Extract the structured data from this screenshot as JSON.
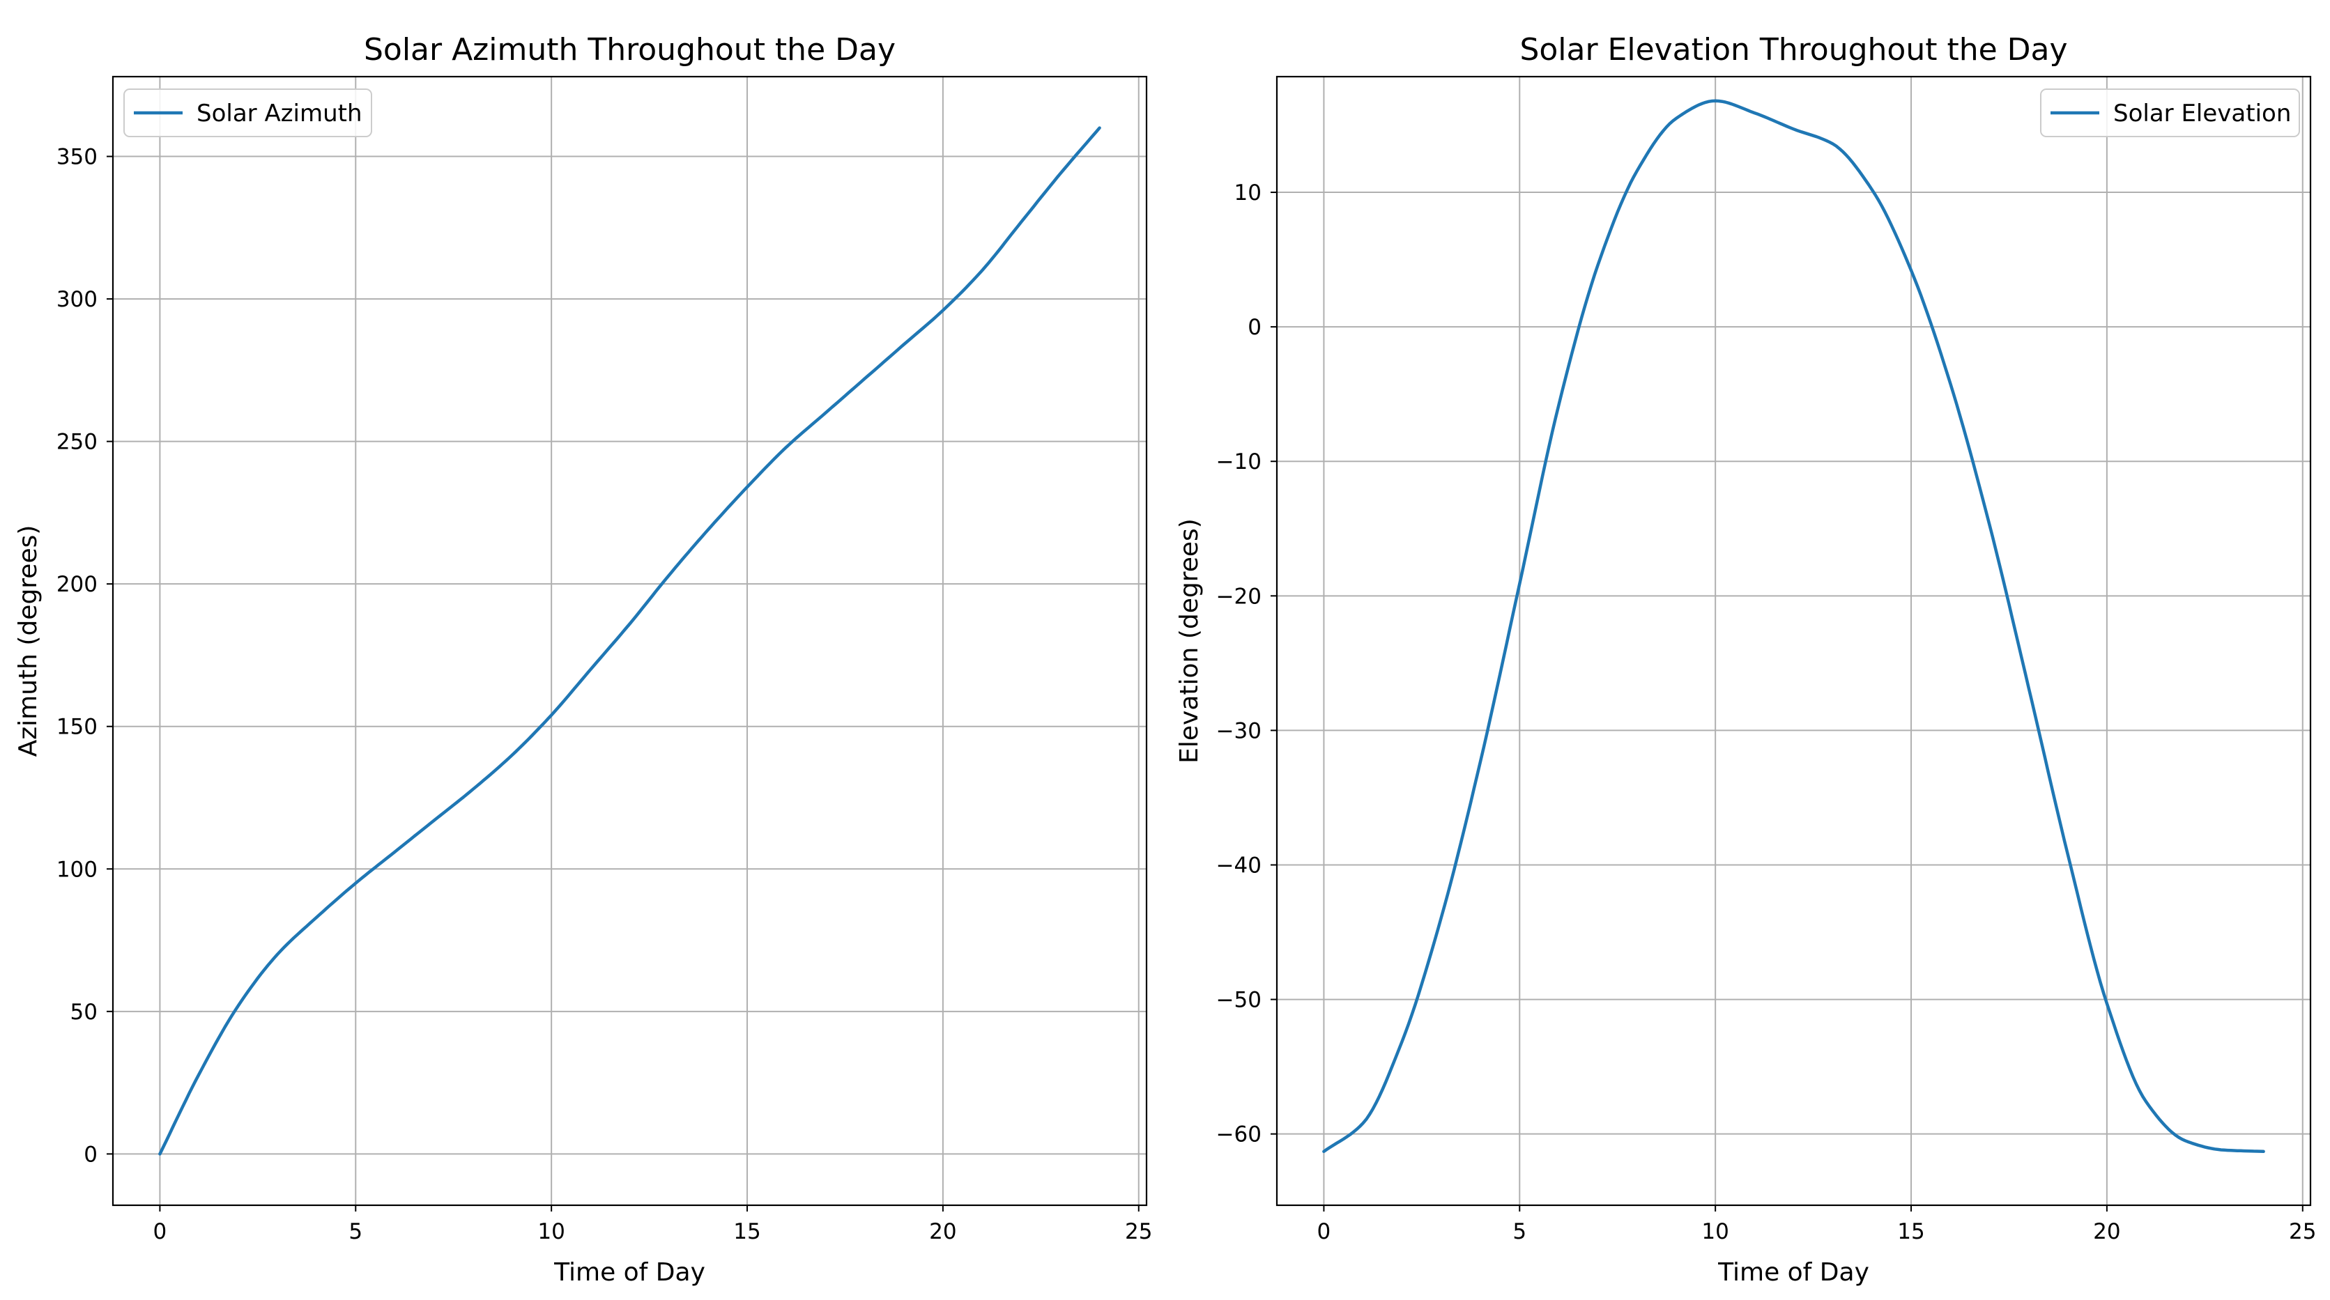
{
  "chart_data": [
    {
      "type": "line",
      "title": "Solar Azimuth Throughout the Day",
      "xlabel": "Time of Day",
      "ylabel": "Azimuth (degrees)",
      "xlim": [
        -1.2,
        25.2
      ],
      "ylim": [
        -18,
        378
      ],
      "xticks": [
        0,
        5,
        10,
        15,
        20,
        25
      ],
      "yticks": [
        0,
        50,
        100,
        150,
        200,
        250,
        300,
        350
      ],
      "xtick_labels": [
        "0",
        "5",
        "10",
        "15",
        "20",
        "25"
      ],
      "ytick_labels": [
        "0",
        "50",
        "100",
        "150",
        "200",
        "250",
        "300",
        "350"
      ],
      "grid": true,
      "legend_position": "upper-left",
      "series": [
        {
          "name": "Solar Azimuth",
          "color": "#1f77b4",
          "x": [
            0,
            1,
            2,
            3,
            4,
            5,
            6,
            7,
            8,
            9,
            10,
            11,
            12,
            13,
            14,
            15,
            16,
            17,
            18,
            19,
            20,
            21,
            22,
            23,
            24
          ],
          "values": [
            0,
            28,
            52,
            70,
            83,
            95,
            106,
            117,
            128,
            140,
            154,
            170,
            186,
            203,
            219,
            234,
            248,
            260,
            272,
            284,
            296,
            310,
            327,
            344,
            360
          ]
        }
      ]
    },
    {
      "type": "line",
      "title": "Solar Elevation Throughout the Day",
      "xlabel": "Time of Day",
      "ylabel": "Elevation (degrees)",
      "xlim": [
        -1.2,
        25.2
      ],
      "ylim": [
        -65.3,
        18.6
      ],
      "xticks": [
        0,
        5,
        10,
        15,
        20,
        25
      ],
      "yticks": [
        -60,
        -50,
        -40,
        -30,
        -20,
        -10,
        0,
        10
      ],
      "xtick_labels": [
        "0",
        "5",
        "10",
        "15",
        "20",
        "25"
      ],
      "ytick_labels": [
        "−60",
        "−50",
        "−40",
        "−30",
        "−20",
        "−10",
        "0",
        "10"
      ],
      "grid": true,
      "legend_position": "upper-right",
      "series": [
        {
          "name": "Solar Elevation",
          "color": "#1f77b4",
          "x": [
            0,
            1,
            2,
            3,
            4,
            5,
            6,
            7,
            8,
            9,
            10,
            11,
            12,
            13,
            14,
            15,
            16,
            17,
            18,
            19,
            20,
            21,
            22,
            23,
            24
          ],
          "values": [
            -61.3,
            -59.2,
            -53.1,
            -43.9,
            -32.3,
            -19.1,
            -5.8,
            4.6,
            11.6,
            15.5,
            16.8,
            15.9,
            14.7,
            13.6,
            10.2,
            4.2,
            -4.2,
            -14.7,
            -26.8,
            -39.2,
            -50.3,
            -57.6,
            -60.5,
            -61.2,
            -61.3
          ]
        }
      ]
    }
  ]
}
